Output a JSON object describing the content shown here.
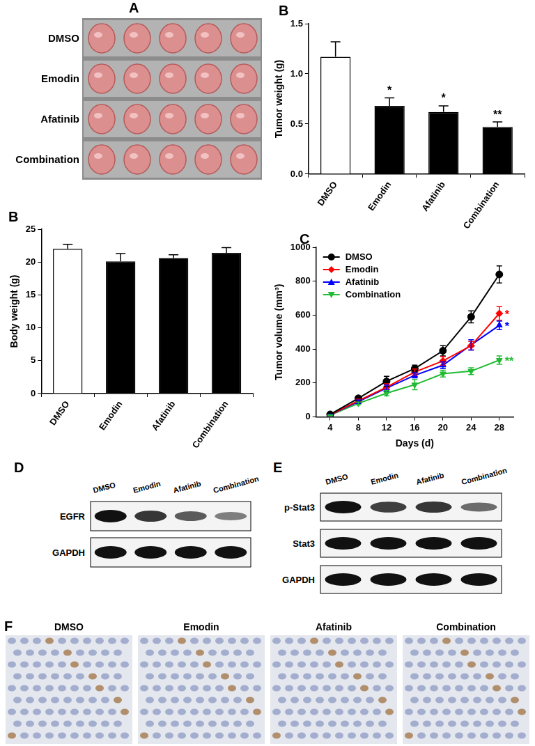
{
  "chart_data": [
    {
      "panel": "B",
      "type": "bar",
      "categories": [
        "DMSO",
        "Emodin",
        "Afatinib",
        "Combination"
      ],
      "values": [
        1.17,
        0.68,
        0.62,
        0.47
      ],
      "errors": [
        0.15,
        0.08,
        0.06,
        0.05
      ],
      "significance": [
        null,
        "*",
        "*",
        "**"
      ],
      "colors": [
        "#ffffff",
        "#000000",
        "#000000",
        "#000000"
      ],
      "y_label": "Tumor weight (g)",
      "ylim": [
        0,
        1.5
      ],
      "yticks": [
        {
          "value": 0,
          "label": "0.0"
        },
        0.5,
        {
          "value": 1,
          "label": "1.0"
        },
        1.5
      ],
      "grid": false
    },
    {
      "panel": "B",
      "type": "bar",
      "categories": [
        "DMSO",
        "Emodin",
        "Afatinib",
        "Combination"
      ],
      "values": [
        22.0,
        20.1,
        20.6,
        21.4
      ],
      "errors": [
        0.7,
        1.2,
        0.5,
        0.8
      ],
      "colors": [
        "#ffffff",
        "#000000",
        "#000000",
        "#000000"
      ],
      "y_label": "Body weight (g)",
      "ylim": [
        0,
        25
      ],
      "yticks": [
        0,
        5,
        10,
        15,
        20,
        25
      ],
      "grid": false
    },
    {
      "panel": "C",
      "type": "line",
      "x": [
        4,
        8,
        12,
        16,
        20,
        24,
        28
      ],
      "x_label": "Days (d)",
      "y_label": "Tumor volume (mm³)",
      "xlim": [
        2,
        30
      ],
      "xticks": [
        4,
        8,
        12,
        16,
        20,
        24,
        28
      ],
      "ylim": [
        0,
        1000
      ],
      "yticks": [
        0,
        200,
        400,
        600,
        800,
        1000
      ],
      "grid": false,
      "legend": "top-left",
      "series": [
        {
          "name": "DMSO",
          "color": "#000000",
          "marker": "circle",
          "values": [
            15,
            110,
            210,
            285,
            390,
            590,
            840
          ],
          "errors": [
            5,
            12,
            30,
            20,
            30,
            35,
            50
          ]
        },
        {
          "name": "Emodin",
          "color": "#ff0000",
          "marker": "diamond",
          "values": [
            12,
            95,
            175,
            265,
            330,
            420,
            610
          ],
          "errors": [
            4,
            10,
            20,
            18,
            25,
            25,
            40
          ],
          "significance": "*"
        },
        {
          "name": "Afatinib",
          "color": "#0000ff",
          "marker": "triangle",
          "values": [
            12,
            90,
            170,
            245,
            305,
            425,
            540
          ],
          "errors": [
            4,
            10,
            18,
            15,
            20,
            30,
            25
          ],
          "significance": "*"
        },
        {
          "name": "Combination",
          "color": "#22bb33",
          "marker": "triangle_down",
          "values": [
            10,
            80,
            140,
            190,
            255,
            270,
            335
          ],
          "errors": [
            3,
            8,
            15,
            30,
            20,
            20,
            25
          ],
          "significance": "**"
        }
      ]
    }
  ],
  "photos": {
    "panel": "A",
    "rows": [
      "DMSO",
      "Emodin",
      "Afatinib",
      "Combination"
    ]
  },
  "western_blots": [
    {
      "panel": "D",
      "lanes": [
        "DMSO",
        "Emodin",
        "Afatinib",
        "Combination"
      ],
      "rows": [
        {
          "label": "EGFR",
          "bands": [
            1.0,
            0.8,
            0.6,
            0.4
          ]
        },
        {
          "label": "GAPDH",
          "bands": [
            1.0,
            1.0,
            1.0,
            1.0
          ]
        }
      ]
    },
    {
      "panel": "E",
      "lanes": [
        "DMSO",
        "Emodin",
        "Afatinib",
        "Combination"
      ],
      "rows": [
        {
          "label": "p-Stat3",
          "bands": [
            1.0,
            0.75,
            0.8,
            0.5
          ]
        },
        {
          "label": "Stat3",
          "bands": [
            1.0,
            1.0,
            1.0,
            1.0
          ]
        },
        {
          "label": "GAPDH",
          "bands": [
            1.0,
            1.0,
            1.0,
            1.0
          ]
        }
      ]
    }
  ],
  "ihc": {
    "panel": "F",
    "labels": [
      "DMSO",
      "Emodin",
      "Afatinib",
      "Combination"
    ]
  }
}
